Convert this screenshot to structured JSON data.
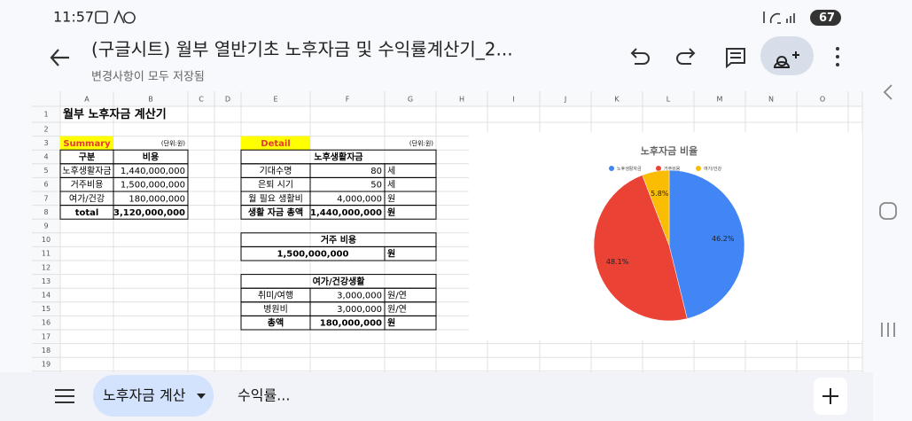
{
  "status": {
    "time": "11:57",
    "battery": "67"
  },
  "toolbar": {
    "title": "(구글시트) 월부 열반기초 노후자금 및 수익률계산기_2...",
    "subtitle": "변경사항이 모두 저장됨"
  },
  "sheet": {
    "columns": [
      "A",
      "B",
      "C",
      "D",
      "E",
      "F",
      "G",
      "H",
      "I",
      "J",
      "K",
      "L",
      "M",
      "N",
      "O"
    ],
    "rows": [
      1,
      2,
      3,
      4,
      5,
      6,
      7,
      8,
      9,
      10,
      11,
      12,
      13,
      14,
      15,
      16,
      17,
      18,
      19
    ],
    "title": "월부 노후자금 계산기",
    "summary": {
      "label": "Summary",
      "unit": "(단위:원)",
      "header": [
        "구분",
        "비용"
      ],
      "rows": [
        [
          "노후생활자금",
          "1,440,000,000"
        ],
        [
          "거주비용",
          "1,500,000,000"
        ],
        [
          "여가/건강",
          "180,000,000"
        ],
        [
          "total",
          "3,120,000,000"
        ]
      ]
    },
    "detail": {
      "label": "Detail",
      "unit": "(단위:원)",
      "living": {
        "title": "노후생활자금",
        "rows": [
          [
            "기대수명",
            "80",
            "세"
          ],
          [
            "은퇴 시기",
            "50",
            "세"
          ],
          [
            "월 필요 생활비",
            "4,000,000",
            "원"
          ],
          [
            "생활 자금 총액",
            "1,440,000,000",
            "원"
          ]
        ]
      },
      "housing": {
        "title": "거주 비용",
        "rows": [
          [
            "1,500,000,000",
            "원"
          ]
        ]
      },
      "leisure": {
        "title": "여가/건강생활",
        "rows": [
          [
            "취미/여행",
            "3,000,000",
            "원/연"
          ],
          [
            "병원비",
            "3,000,000",
            "원/연"
          ],
          [
            "총액",
            "180,000,000",
            "원"
          ]
        ]
      }
    }
  },
  "chart_data": {
    "type": "pie",
    "title": "노후자금 비율",
    "categories": [
      "노후생활자금",
      "거주비용",
      "여가/건강"
    ],
    "values": [
      46.2,
      48.1,
      5.8
    ],
    "value_labels": [
      "46.2%",
      "48.1%",
      "5.8%"
    ],
    "colors": [
      "#4285f4",
      "#ea4335",
      "#fbbc04"
    ],
    "legend": "top"
  },
  "tabs": [
    "노후자금 계산",
    "수익률..."
  ]
}
